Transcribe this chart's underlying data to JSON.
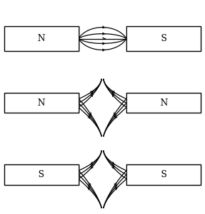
{
  "bg_color": "#ffffff",
  "line_color": "#000000",
  "box_color": "#ffffff",
  "box_edge": "#000000",
  "figsize": [
    2.89,
    3.02
  ],
  "dpi": 100,
  "diagrams": [
    {
      "label_left": "N",
      "label_right": "S",
      "type": "NS"
    },
    {
      "label_left": "N",
      "label_right": "N",
      "type": "NN"
    },
    {
      "label_left": "S",
      "label_right": "S",
      "type": "SS"
    }
  ]
}
